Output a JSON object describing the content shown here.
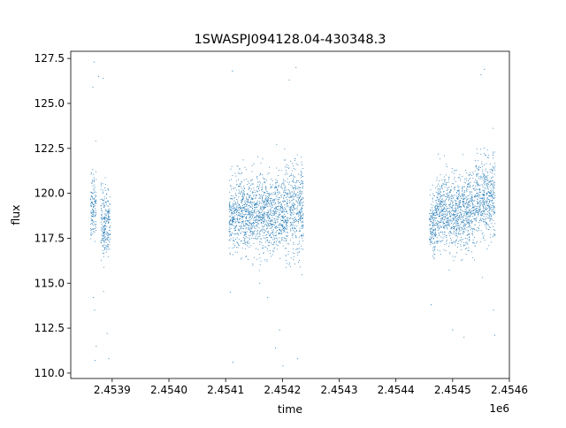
{
  "chart_data": {
    "type": "scatter",
    "title": "1SWASPJ094128.04-430348.3",
    "xlabel": "time",
    "ylabel": "flux",
    "x_offset_label": "1e6",
    "xlim": [
      2453827,
      2454600
    ],
    "ylim": [
      109.7,
      127.9
    ],
    "x_ticks": [
      {
        "value": 2453900,
        "label": "2.4539"
      },
      {
        "value": 2454000,
        "label": "2.4540"
      },
      {
        "value": 2454100,
        "label": "2.4541"
      },
      {
        "value": 2454200,
        "label": "2.4542"
      },
      {
        "value": 2454300,
        "label": "2.4543"
      },
      {
        "value": 2454400,
        "label": "2.4544"
      },
      {
        "value": 2454500,
        "label": "2.4545"
      },
      {
        "value": 2454600,
        "label": "2.4546"
      }
    ],
    "y_ticks": [
      {
        "value": 110.0,
        "label": "110.0"
      },
      {
        "value": 112.5,
        "label": "112.5"
      },
      {
        "value": 115.0,
        "label": "115.0"
      },
      {
        "value": 117.5,
        "label": "117.5"
      },
      {
        "value": 120.0,
        "label": "120.0"
      },
      {
        "value": 122.5,
        "label": "122.5"
      },
      {
        "value": 125.0,
        "label": "125.0"
      },
      {
        "value": 127.5,
        "label": "127.5"
      }
    ],
    "grid": false,
    "legend": "none",
    "point_color": "#1f77b4",
    "series": [
      {
        "segments": [
          {
            "x_start": 2453862,
            "x_end": 2453872,
            "center": 119.3,
            "spread": 1.7
          },
          {
            "x_start": 2453880,
            "x_end": 2453897,
            "center": 118.3,
            "spread": 1.6
          },
          {
            "x_start": 2454106,
            "x_end": 2454116,
            "center": 118.8,
            "spread": 1.6
          },
          {
            "x_start": 2454116,
            "x_end": 2454160,
            "center": 118.9,
            "spread": 1.8
          },
          {
            "x_start": 2454160,
            "x_end": 2454200,
            "center": 118.9,
            "spread": 1.8
          },
          {
            "x_start": 2454200,
            "x_end": 2454237,
            "center": 119.2,
            "spread": 2.1
          },
          {
            "x_start": 2454459,
            "x_end": 2454470,
            "center": 118.2,
            "spread": 1.4
          },
          {
            "x_start": 2454470,
            "x_end": 2454510,
            "center": 118.9,
            "spread": 1.7
          },
          {
            "x_start": 2454510,
            "x_end": 2454540,
            "center": 119.0,
            "spread": 1.8
          },
          {
            "x_start": 2454540,
            "x_end": 2454575,
            "center": 119.7,
            "spread": 1.9
          }
        ],
        "outliers": [
          [
            2453868,
            127.3
          ],
          [
            2453866,
            125.9
          ],
          [
            2453867,
            114.2
          ],
          [
            2453869,
            113.5
          ],
          [
            2453872,
            111.5
          ],
          [
            2453870,
            110.7
          ],
          [
            2453876,
            126.5
          ],
          [
            2453884,
            126.4
          ],
          [
            2453891,
            112.2
          ],
          [
            2453894,
            110.8
          ],
          [
            2454112,
            126.8
          ],
          [
            2454113,
            110.6
          ],
          [
            2454108,
            114.5
          ],
          [
            2454160,
            115.0
          ],
          [
            2454174,
            114.2
          ],
          [
            2454188,
            111.4
          ],
          [
            2454195,
            112.4
          ],
          [
            2454212,
            126.3
          ],
          [
            2454224,
            127.0
          ],
          [
            2454227,
            110.8
          ],
          [
            2454201,
            110.4
          ],
          [
            2454462,
            113.8
          ],
          [
            2454500,
            112.4
          ],
          [
            2454520,
            112.0
          ],
          [
            2454550,
            126.6
          ],
          [
            2454556,
            126.9
          ],
          [
            2454572,
            113.5
          ],
          [
            2454574,
            112.1
          ]
        ]
      }
    ]
  }
}
